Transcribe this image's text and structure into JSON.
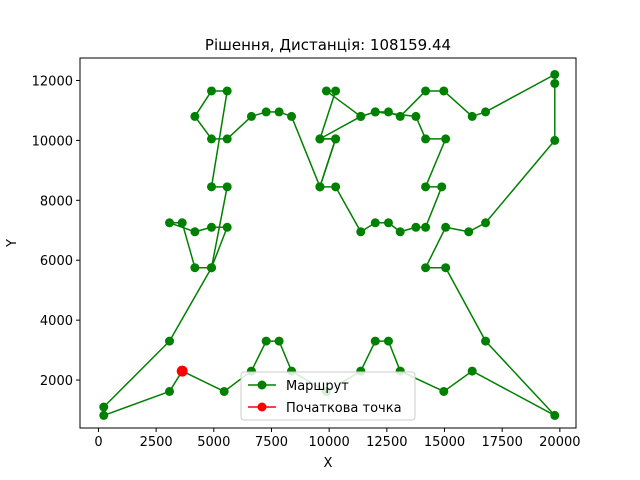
{
  "chart_data": {
    "type": "line",
    "title": "Рішення, Дистанція: 108159.44",
    "xlabel": "X",
    "ylabel": "Y",
    "xlim": [
      -800,
      20700
    ],
    "ylim": [
      400,
      12750
    ],
    "xticks": [
      0,
      2500,
      5000,
      7500,
      10000,
      12500,
      15000,
      17500,
      20000
    ],
    "yticks": [
      2000,
      4000,
      6000,
      8000,
      10000,
      12000
    ],
    "xtick_labels": [
      "0",
      "2500",
      "5000",
      "7500",
      "10000",
      "12500",
      "15000",
      "17500",
      "20000"
    ],
    "ytick_labels": [
      "2000",
      "4000",
      "6000",
      "8000",
      "10000",
      "12000"
    ],
    "grid": false,
    "legend_position": "bottom-center",
    "series": [
      {
        "name": "Маршрут",
        "color": "#008000",
        "marker": "circle",
        "x": [
          3630,
          5450,
          6630,
          7270,
          7830,
          8370,
          9880,
          11370,
          12000,
          12570,
          13080,
          14970,
          16200,
          19780,
          16780,
          15050,
          14180,
          15050,
          16050,
          16780,
          19780,
          19780,
          19780,
          16780,
          16200,
          14970,
          14180,
          13080,
          12570,
          12000,
          11370,
          9880,
          10280,
          9600,
          10280,
          9600,
          10280,
          11370,
          12000,
          12570,
          13080,
          13760,
          14180,
          14880,
          14180,
          15050,
          14180,
          13760,
          12000,
          11370,
          9600,
          10280,
          9600,
          8370,
          7830,
          7270,
          6630,
          5580,
          4900,
          4180,
          4900,
          5580,
          4900,
          5580,
          4900,
          4180,
          3630,
          3080,
          4180,
          4900,
          5580,
          4900,
          3080,
          230,
          230,
          3080,
          3630
        ],
        "y": [
          2300,
          1620,
          2300,
          3300,
          3300,
          2300,
          1620,
          2300,
          3300,
          3300,
          2300,
          1620,
          2300,
          820,
          3300,
          5750,
          5750,
          7100,
          6950,
          7250,
          10000,
          11900,
          12200,
          10950,
          10800,
          11650,
          11650,
          10800,
          10950,
          10950,
          10800,
          11650,
          11650,
          10050,
          10050,
          8450,
          8450,
          6950,
          7250,
          7250,
          6950,
          7100,
          7100,
          8450,
          8450,
          10050,
          10050,
          10800,
          10950,
          10800,
          10050,
          10050,
          8450,
          10800,
          10950,
          10950,
          10800,
          10050,
          10050,
          10800,
          11650,
          11650,
          8450,
          8450,
          5750,
          5750,
          7250,
          7250,
          6950,
          7100,
          7100,
          5750,
          3300,
          1100,
          820,
          1620,
          2300
        ]
      },
      {
        "name": "Початкова точка",
        "color": "#ff0000",
        "marker": "circle",
        "x": [
          3630
        ],
        "y": [
          2300
        ]
      }
    ]
  }
}
